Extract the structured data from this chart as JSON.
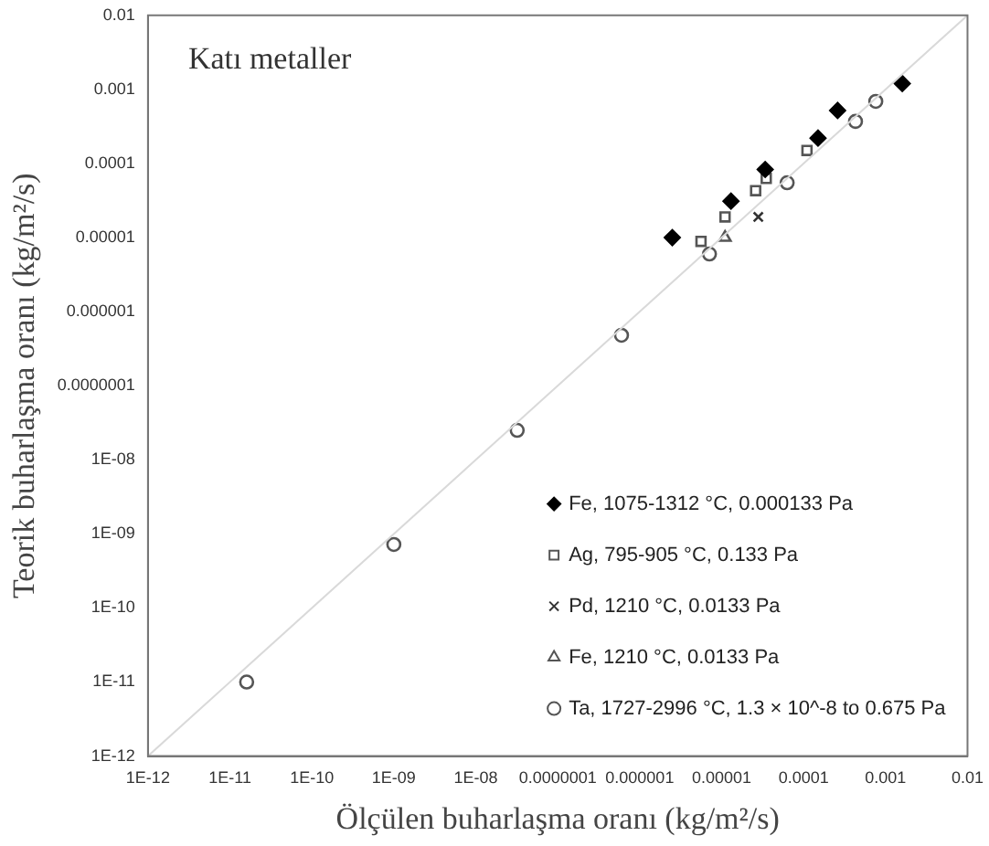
{
  "chart_data": {
    "type": "scatter",
    "xlabel": "Ölçülen buharlaşma oranı (kg/m²/s)",
    "ylabel": "Teorik buharlaşma oranı (kg/m²/s)",
    "annotations": [
      "Katı metaller"
    ],
    "log": "xy",
    "grid": false,
    "legend": "bottom right",
    "xlim": [
      1e-12,
      0.01
    ],
    "ylim": [
      1e-12,
      0.01
    ],
    "xticks": [
      {
        "value": 1e-12,
        "label": "1E-12"
      },
      {
        "value": 1e-11,
        "label": "1E-11"
      },
      {
        "value": 1e-10,
        "label": "1E-10"
      },
      {
        "value": 1e-09,
        "label": "1E-09"
      },
      {
        "value": 1e-08,
        "label": "1E-08"
      },
      {
        "value": 1e-07,
        "label": "0.0000001"
      },
      {
        "value": 1e-06,
        "label": "0.000001"
      },
      {
        "value": 1e-05,
        "label": "0.00001"
      },
      0.0001,
      0.001,
      0.01
    ],
    "yticks": [
      {
        "value": 1e-12,
        "label": "1E-12"
      },
      {
        "value": 1e-11,
        "label": "1E-11"
      },
      {
        "value": 1e-10,
        "label": "1E-10"
      },
      {
        "value": 1e-09,
        "label": "1E-09"
      },
      {
        "value": 1e-08,
        "label": "1E-08"
      },
      {
        "value": 1e-07,
        "label": "0.0000001"
      },
      {
        "value": 1e-06,
        "label": "0.000001"
      },
      {
        "value": 1e-05,
        "label": "0.00001"
      },
      0.0001,
      0.001,
      0.01
    ],
    "series": [
      {
        "type": "line",
        "color": "#d9d9d9",
        "marker": "none",
        "x": [
          1e-12,
          0.01
        ],
        "values": [
          1e-12,
          0.01
        ]
      },
      {
        "name": "Fe, 1075-1312 °C, 0.000133 Pa",
        "color": "#000000",
        "marker": "diamond",
        "x": [
          2.5e-06,
          1.3e-05,
          3.4e-05,
          0.00015,
          0.00026,
          0.0016
        ],
        "values": [
          1e-05,
          3.1e-05,
          8.3e-05,
          0.00022,
          0.00052,
          0.0012
        ]
      },
      {
        "name": "Ag, 795-905 °C, 0.133 Pa",
        "color": "#555555",
        "marker": "square",
        "x": [
          5.6e-06,
          1.1e-05,
          2.6e-05,
          3.5e-05,
          0.00011
        ],
        "values": [
          8.9e-06,
          1.9e-05,
          4.3e-05,
          6.3e-05,
          0.00015
        ]
      },
      {
        "name": "Pd, 1210 °C, 0.0133 Pa",
        "color": "#333333",
        "marker": "cross",
        "x": [
          2.8e-05
        ],
        "values": [
          1.9e-05
        ]
      },
      {
        "name": "Fe, 1210 °C, 0.0133 Pa",
        "color": "#555555",
        "marker": "triangle",
        "x": [
          1.1e-05
        ],
        "values": [
          1e-05
        ]
      },
      {
        "name": "Ta, 1727-2996 °C, 1.3 × 10^-8 to 0.675 Pa",
        "color": "#555555",
        "marker": "circle",
        "x": [
          1.6e-11,
          1e-09,
          3.2e-08,
          6e-07,
          7.1e-06,
          6.3e-05,
          0.00043,
          0.00076
        ],
        "values": [
          1e-11,
          7.2e-10,
          2.5e-08,
          4.8e-07,
          6e-06,
          5.5e-05,
          0.00037,
          0.00069
        ]
      }
    ]
  }
}
